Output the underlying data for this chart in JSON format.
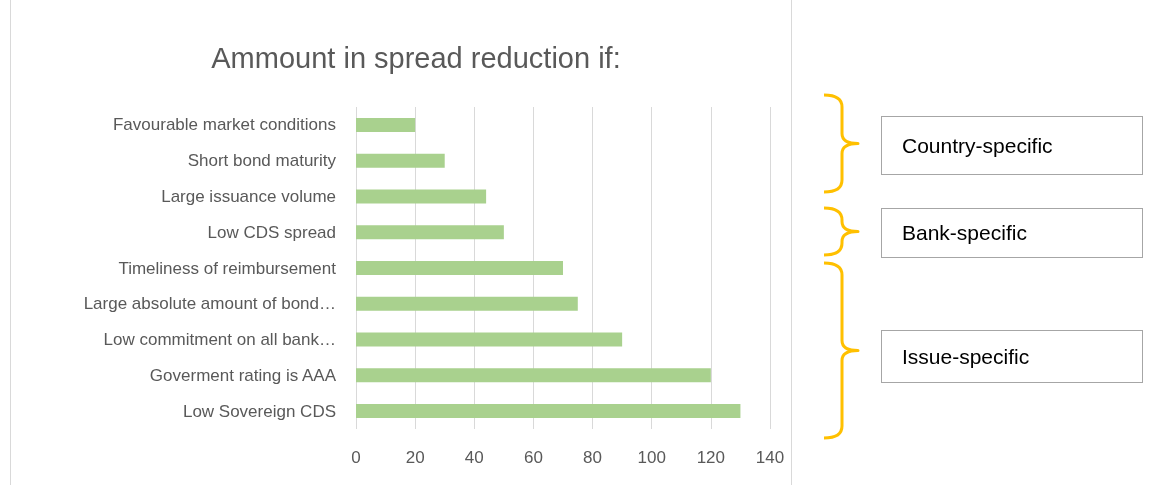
{
  "chart_data": {
    "type": "bar",
    "orientation": "horizontal",
    "title": "Ammount in spread reduction if:",
    "categories": [
      "Favourable market conditions",
      "Short bond maturity",
      "Large issuance volume",
      "Low CDS spread",
      "Timeliness of reimbursement",
      "Large absolute amount of bond…",
      "Low commitment on all bank…",
      "Goverment rating is AAA",
      "Low Sovereign CDS"
    ],
    "values": [
      20,
      30,
      44,
      50,
      70,
      75,
      90,
      120,
      130
    ],
    "color": "#a9d18e",
    "xlim": [
      0,
      140
    ],
    "xticks": [
      0,
      20,
      40,
      60,
      80,
      100,
      120,
      140
    ],
    "grid": "x",
    "annotations": [
      "Country-specific",
      "Bank-specific",
      "Issue-specific"
    ]
  }
}
